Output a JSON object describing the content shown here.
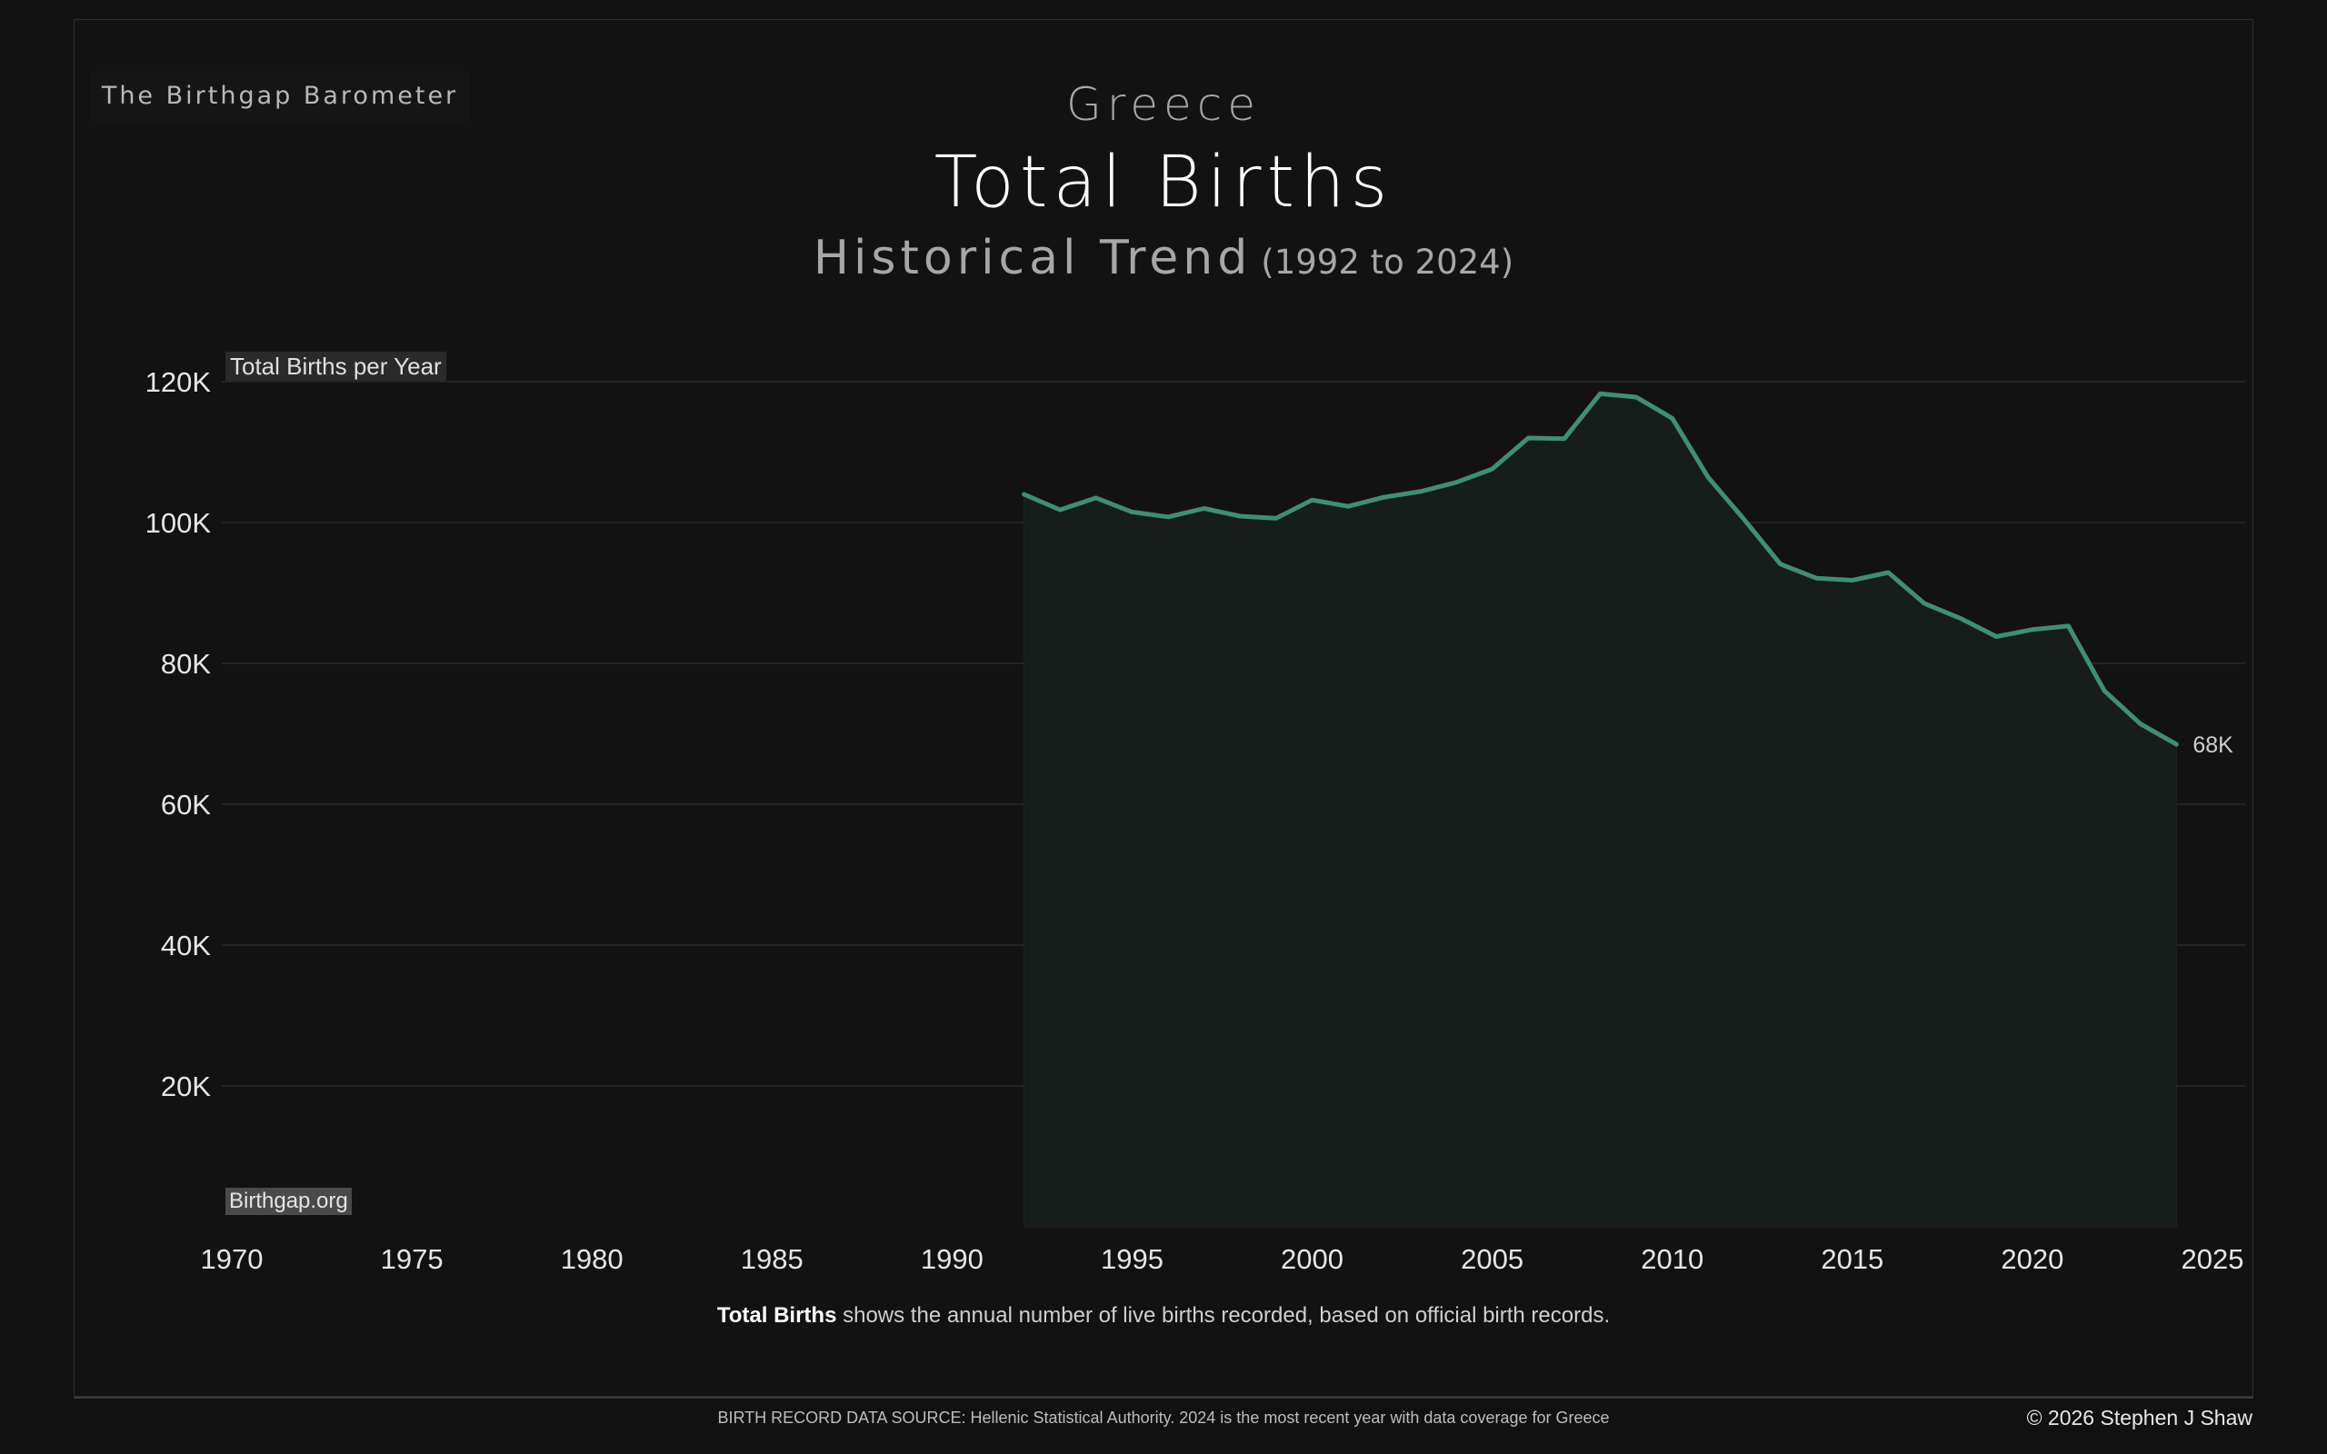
{
  "brand": "The Birthgap Barometer",
  "header": {
    "country": "Greece",
    "title": "Total Births",
    "subtitle": "Historical Trend",
    "range": "(1992 to 2024)"
  },
  "footer": {
    "note_bold": "Total Births",
    "note_rest": " shows the annual number of live births recorded, based on official birth records.",
    "source": "BIRTH RECORD DATA SOURCE: Hellenic Statistical Authority. 2024 is the most recent year with data coverage for Greece",
    "copyright": "© 2026 Stephen J Shaw",
    "site": "Birthgap.org"
  },
  "colors": {
    "line": "#3f8f72",
    "area": "#171d1b",
    "grid": "#232323",
    "background": "#121212"
  },
  "chart_data": {
    "type": "area",
    "ylabel": "Total Births per Year",
    "xlim": [
      1970,
      2025
    ],
    "ylim": [
      0,
      120000
    ],
    "x_ticks": [
      1970,
      1975,
      1980,
      1985,
      1990,
      1995,
      2000,
      2005,
      2010,
      2015,
      2020,
      2025
    ],
    "y_ticks": [
      20000,
      40000,
      60000,
      80000,
      100000,
      120000
    ],
    "y_tick_labels": [
      "20K",
      "40K",
      "60K",
      "80K",
      "100K",
      "120K"
    ],
    "grid": true,
    "x": [
      1992,
      1993,
      1994,
      1995,
      1996,
      1997,
      1998,
      1999,
      2000,
      2001,
      2002,
      2003,
      2004,
      2005,
      2006,
      2007,
      2008,
      2009,
      2010,
      2011,
      2012,
      2013,
      2014,
      2015,
      2016,
      2017,
      2018,
      2019,
      2020,
      2021,
      2022,
      2023,
      2024
    ],
    "values": [
      104000,
      101800,
      103500,
      101500,
      100800,
      102000,
      100900,
      100600,
      103200,
      102300,
      103600,
      104400,
      105700,
      107600,
      112000,
      111900,
      118300,
      117800,
      114800,
      106400,
      100400,
      94100,
      92100,
      91800,
      92900,
      88500,
      86400,
      83800,
      84800,
      85300,
      76100,
      71400,
      68500
    ],
    "end_label": "68K"
  }
}
